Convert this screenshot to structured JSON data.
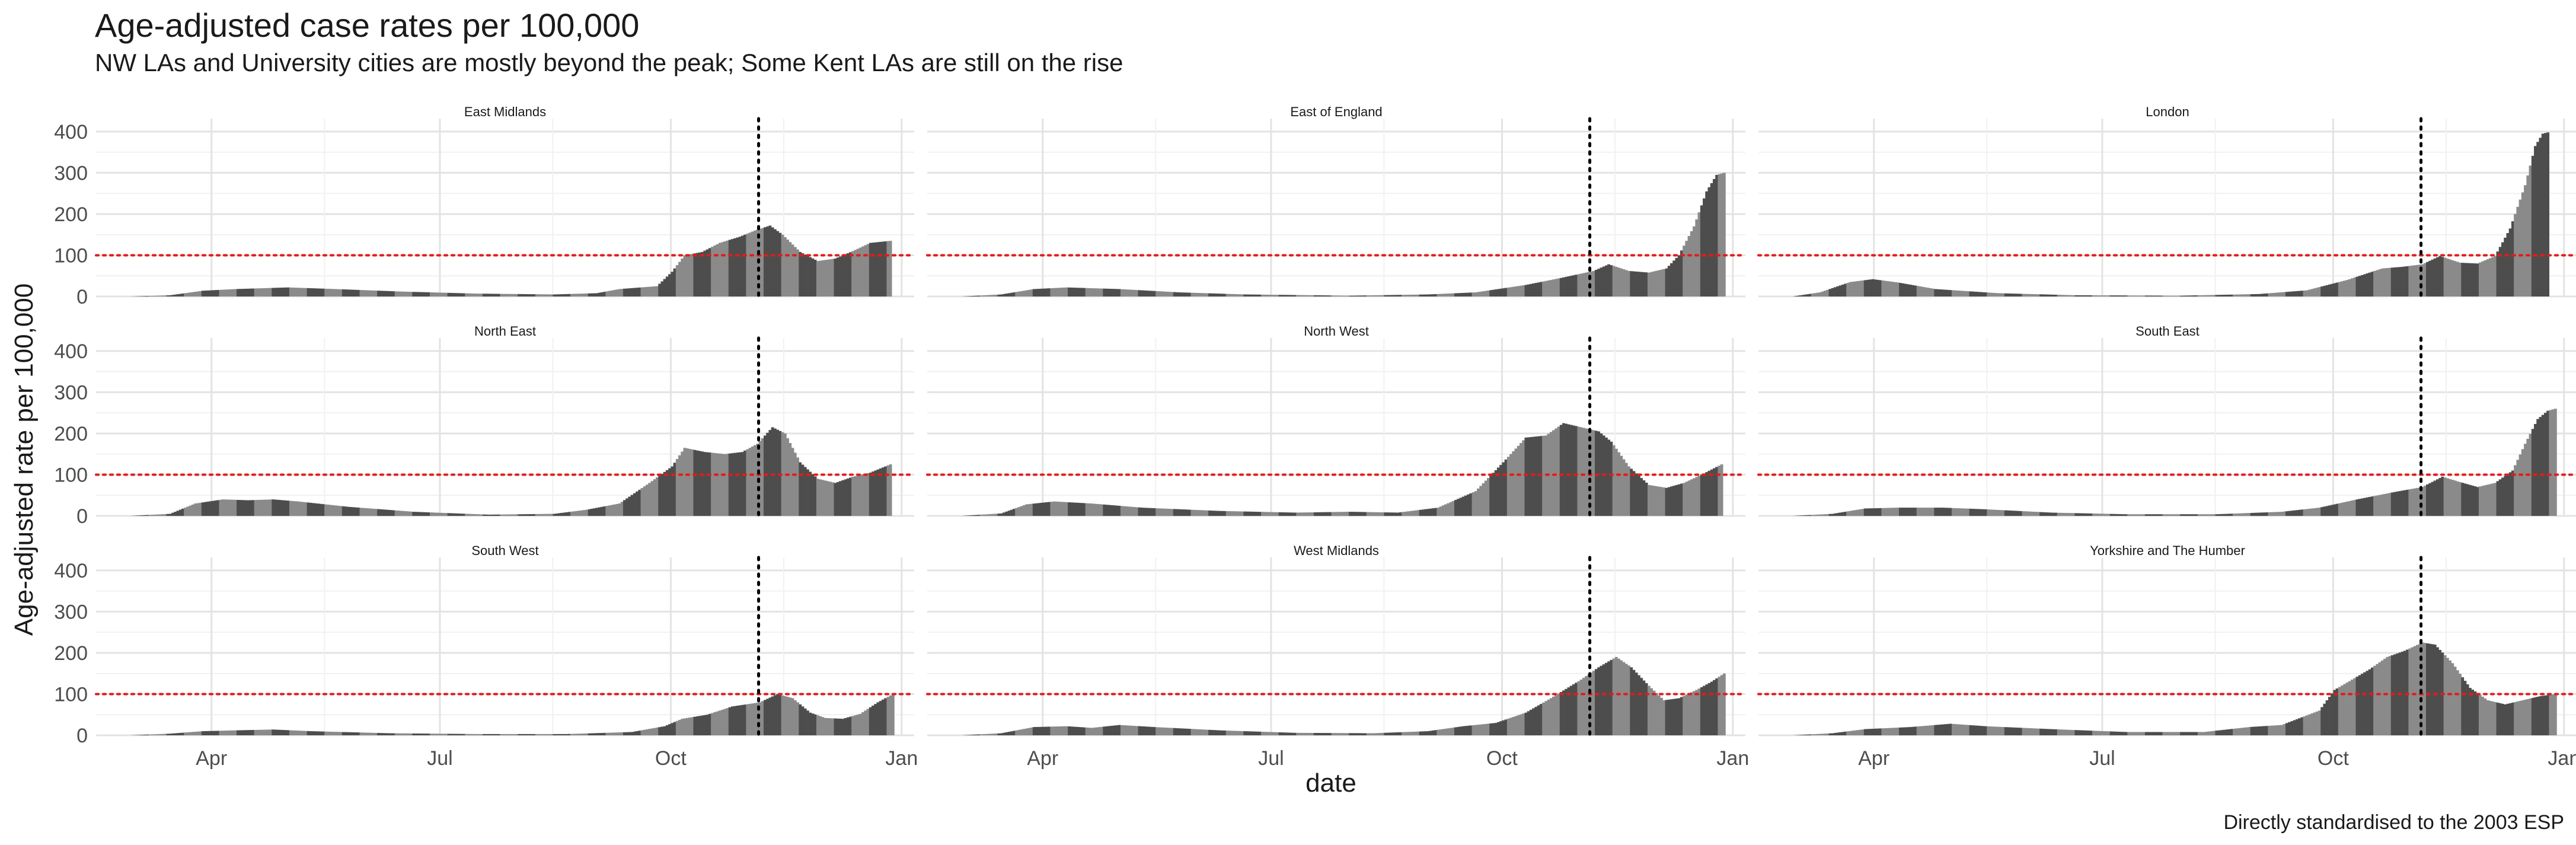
{
  "title": "Age-adjusted case rates per 100,000",
  "subtitle": "NW LAs and University cities are mostly beyond the peak; Some Kent LAs are still on the rise",
  "caption": "Directly standardised to the 2003 ESP",
  "chart_data": {
    "type": "bar",
    "xlabel": "date",
    "ylabel": "Age-adjusted rate per 100,000",
    "x_ticks": [
      "Apr",
      "Jul",
      "Oct",
      "Jan"
    ],
    "y_ticks": [
      0,
      100,
      200,
      300,
      400
    ],
    "xlim": [
      "2020-02-15",
      "2021-01-06"
    ],
    "ylim": [
      0,
      420
    ],
    "reference_line": {
      "value": 100,
      "style": "dotted",
      "color": "#e41a1c"
    },
    "vertical_line": {
      "date": "2020-11-05",
      "style": "dotted",
      "color": "#000000"
    },
    "grid": true,
    "facets": [
      {
        "name": "East Midlands",
        "points": [
          [
            "2020-02-28",
            0
          ],
          [
            "2020-03-15",
            3
          ],
          [
            "2020-03-28",
            14
          ],
          [
            "2020-04-10",
            18
          ],
          [
            "2020-05-01",
            22
          ],
          [
            "2020-05-20",
            18
          ],
          [
            "2020-06-15",
            12
          ],
          [
            "2020-07-15",
            7
          ],
          [
            "2020-08-15",
            5
          ],
          [
            "2020-09-01",
            8
          ],
          [
            "2020-09-10",
            18
          ],
          [
            "2020-09-25",
            25
          ],
          [
            "2020-10-01",
            60
          ],
          [
            "2020-10-06",
            100
          ],
          [
            "2020-10-13",
            108
          ],
          [
            "2020-10-20",
            130
          ],
          [
            "2020-10-28",
            145
          ],
          [
            "2020-11-03",
            160
          ],
          [
            "2020-11-09",
            172
          ],
          [
            "2020-11-14",
            150
          ],
          [
            "2020-11-21",
            108
          ],
          [
            "2020-11-28",
            86
          ],
          [
            "2020-12-05",
            92
          ],
          [
            "2020-12-12",
            110
          ],
          [
            "2020-12-19",
            130
          ],
          [
            "2020-12-27",
            135
          ]
        ]
      },
      {
        "name": "East of England",
        "points": [
          [
            "2020-02-28",
            0
          ],
          [
            "2020-03-15",
            5
          ],
          [
            "2020-03-28",
            18
          ],
          [
            "2020-04-10",
            22
          ],
          [
            "2020-05-01",
            18
          ],
          [
            "2020-05-25",
            10
          ],
          [
            "2020-06-20",
            5
          ],
          [
            "2020-08-01",
            2
          ],
          [
            "2020-09-01",
            5
          ],
          [
            "2020-09-20",
            10
          ],
          [
            "2020-10-10",
            28
          ],
          [
            "2020-10-24",
            45
          ],
          [
            "2020-11-06",
            62
          ],
          [
            "2020-11-12",
            78
          ],
          [
            "2020-11-20",
            62
          ],
          [
            "2020-11-28",
            58
          ],
          [
            "2020-12-05",
            68
          ],
          [
            "2020-12-10",
            100
          ],
          [
            "2020-12-16",
            170
          ],
          [
            "2020-12-21",
            255
          ],
          [
            "2020-12-25",
            295
          ],
          [
            "2020-12-28",
            300
          ]
        ]
      },
      {
        "name": "London",
        "points": [
          [
            "2020-02-28",
            0
          ],
          [
            "2020-03-10",
            10
          ],
          [
            "2020-03-22",
            35
          ],
          [
            "2020-03-31",
            42
          ],
          [
            "2020-04-10",
            34
          ],
          [
            "2020-04-25",
            18
          ],
          [
            "2020-05-20",
            8
          ],
          [
            "2020-06-20",
            3
          ],
          [
            "2020-08-01",
            2
          ],
          [
            "2020-09-01",
            6
          ],
          [
            "2020-09-20",
            15
          ],
          [
            "2020-10-06",
            40
          ],
          [
            "2020-10-20",
            68
          ],
          [
            "2020-10-28",
            72
          ],
          [
            "2020-11-05",
            78
          ],
          [
            "2020-11-12",
            98
          ],
          [
            "2020-11-20",
            82
          ],
          [
            "2020-11-27",
            80
          ],
          [
            "2020-12-04",
            98
          ],
          [
            "2020-12-10",
            165
          ],
          [
            "2020-12-16",
            270
          ],
          [
            "2020-12-20",
            365
          ],
          [
            "2020-12-23",
            395
          ],
          [
            "2020-12-25",
            398
          ]
        ]
      },
      {
        "name": "North East",
        "points": [
          [
            "2020-02-28",
            0
          ],
          [
            "2020-03-15",
            5
          ],
          [
            "2020-03-25",
            30
          ],
          [
            "2020-04-05",
            40
          ],
          [
            "2020-04-15",
            38
          ],
          [
            "2020-04-25",
            40
          ],
          [
            "2020-05-05",
            35
          ],
          [
            "2020-05-25",
            22
          ],
          [
            "2020-06-20",
            10
          ],
          [
            "2020-07-20",
            3
          ],
          [
            "2020-08-15",
            5
          ],
          [
            "2020-08-28",
            15
          ],
          [
            "2020-09-10",
            30
          ],
          [
            "2020-09-22",
            80
          ],
          [
            "2020-10-01",
            120
          ],
          [
            "2020-10-06",
            165
          ],
          [
            "2020-10-14",
            155
          ],
          [
            "2020-10-22",
            150
          ],
          [
            "2020-10-29",
            155
          ],
          [
            "2020-11-04",
            175
          ],
          [
            "2020-11-10",
            215
          ],
          [
            "2020-11-15",
            200
          ],
          [
            "2020-11-21",
            130
          ],
          [
            "2020-11-28",
            90
          ],
          [
            "2020-12-05",
            80
          ],
          [
            "2020-12-12",
            95
          ],
          [
            "2020-12-19",
            105
          ],
          [
            "2020-12-27",
            125
          ]
        ]
      },
      {
        "name": "North West",
        "points": [
          [
            "2020-02-28",
            0
          ],
          [
            "2020-03-15",
            6
          ],
          [
            "2020-03-25",
            28
          ],
          [
            "2020-04-05",
            35
          ],
          [
            "2020-04-20",
            30
          ],
          [
            "2020-05-10",
            20
          ],
          [
            "2020-06-10",
            12
          ],
          [
            "2020-07-10",
            8
          ],
          [
            "2020-08-01",
            10
          ],
          [
            "2020-08-20",
            8
          ],
          [
            "2020-09-05",
            20
          ],
          [
            "2020-09-20",
            60
          ],
          [
            "2020-10-01",
            130
          ],
          [
            "2020-10-10",
            190
          ],
          [
            "2020-10-18",
            195
          ],
          [
            "2020-10-25",
            225
          ],
          [
            "2020-11-01",
            215
          ],
          [
            "2020-11-08",
            205
          ],
          [
            "2020-11-13",
            180
          ],
          [
            "2020-11-20",
            120
          ],
          [
            "2020-11-28",
            75
          ],
          [
            "2020-12-05",
            68
          ],
          [
            "2020-12-12",
            80
          ],
          [
            "2020-12-19",
            100
          ],
          [
            "2020-12-27",
            125
          ]
        ]
      },
      {
        "name": "South East",
        "points": [
          [
            "2020-02-28",
            0
          ],
          [
            "2020-03-15",
            5
          ],
          [
            "2020-03-28",
            18
          ],
          [
            "2020-04-10",
            20
          ],
          [
            "2020-04-28",
            20
          ],
          [
            "2020-05-15",
            16
          ],
          [
            "2020-06-10",
            8
          ],
          [
            "2020-07-10",
            4
          ],
          [
            "2020-08-15",
            4
          ],
          [
            "2020-09-10",
            10
          ],
          [
            "2020-09-25",
            20
          ],
          [
            "2020-10-10",
            40
          ],
          [
            "2020-10-25",
            58
          ],
          [
            "2020-11-05",
            70
          ],
          [
            "2020-11-13",
            95
          ],
          [
            "2020-11-20",
            82
          ],
          [
            "2020-11-27",
            70
          ],
          [
            "2020-12-04",
            80
          ],
          [
            "2020-12-11",
            110
          ],
          [
            "2020-12-16",
            175
          ],
          [
            "2020-12-21",
            235
          ],
          [
            "2020-12-25",
            255
          ],
          [
            "2020-12-28",
            260
          ]
        ]
      },
      {
        "name": "South West",
        "points": [
          [
            "2020-02-28",
            0
          ],
          [
            "2020-03-15",
            4
          ],
          [
            "2020-03-28",
            10
          ],
          [
            "2020-04-10",
            12
          ],
          [
            "2020-04-25",
            14
          ],
          [
            "2020-05-10",
            10
          ],
          [
            "2020-06-10",
            5
          ],
          [
            "2020-07-15",
            3
          ],
          [
            "2020-08-20",
            3
          ],
          [
            "2020-09-15",
            8
          ],
          [
            "2020-09-28",
            22
          ],
          [
            "2020-10-05",
            40
          ],
          [
            "2020-10-15",
            50
          ],
          [
            "2020-10-25",
            70
          ],
          [
            "2020-11-05",
            80
          ],
          [
            "2020-11-12",
            100
          ],
          [
            "2020-11-18",
            90
          ],
          [
            "2020-11-25",
            55
          ],
          [
            "2020-12-01",
            42
          ],
          [
            "2020-12-08",
            40
          ],
          [
            "2020-12-15",
            52
          ],
          [
            "2020-12-22",
            80
          ],
          [
            "2020-12-28",
            100
          ]
        ]
      },
      {
        "name": "West Midlands",
        "points": [
          [
            "2020-02-28",
            0
          ],
          [
            "2020-03-15",
            5
          ],
          [
            "2020-03-28",
            20
          ],
          [
            "2020-04-10",
            22
          ],
          [
            "2020-04-20",
            18
          ],
          [
            "2020-05-01",
            25
          ],
          [
            "2020-05-15",
            20
          ],
          [
            "2020-06-10",
            12
          ],
          [
            "2020-07-10",
            6
          ],
          [
            "2020-08-10",
            5
          ],
          [
            "2020-09-01",
            10
          ],
          [
            "2020-09-15",
            22
          ],
          [
            "2020-09-28",
            30
          ],
          [
            "2020-10-10",
            55
          ],
          [
            "2020-10-20",
            90
          ],
          [
            "2020-11-01",
            135
          ],
          [
            "2020-11-08",
            165
          ],
          [
            "2020-11-15",
            190
          ],
          [
            "2020-11-21",
            165
          ],
          [
            "2020-11-28",
            120
          ],
          [
            "2020-12-04",
            85
          ],
          [
            "2020-12-10",
            90
          ],
          [
            "2020-12-17",
            110
          ],
          [
            "2020-12-23",
            130
          ],
          [
            "2020-12-28",
            150
          ]
        ]
      },
      {
        "name": "Yorkshire and The Humber",
        "points": [
          [
            "2020-02-28",
            0
          ],
          [
            "2020-03-15",
            5
          ],
          [
            "2020-03-28",
            15
          ],
          [
            "2020-04-15",
            20
          ],
          [
            "2020-05-01",
            28
          ],
          [
            "2020-05-15",
            22
          ],
          [
            "2020-06-10",
            15
          ],
          [
            "2020-07-10",
            8
          ],
          [
            "2020-08-10",
            8
          ],
          [
            "2020-08-28",
            20
          ],
          [
            "2020-09-10",
            25
          ],
          [
            "2020-09-25",
            60
          ],
          [
            "2020-10-01",
            110
          ],
          [
            "2020-10-08",
            135
          ],
          [
            "2020-10-15",
            160
          ],
          [
            "2020-10-22",
            190
          ],
          [
            "2020-10-29",
            205
          ],
          [
            "2020-11-05",
            225
          ],
          [
            "2020-11-10",
            220
          ],
          [
            "2020-11-17",
            175
          ],
          [
            "2020-11-24",
            115
          ],
          [
            "2020-12-01",
            85
          ],
          [
            "2020-12-08",
            75
          ],
          [
            "2020-12-15",
            85
          ],
          [
            "2020-12-22",
            95
          ],
          [
            "2020-12-28",
            100
          ]
        ]
      }
    ]
  }
}
